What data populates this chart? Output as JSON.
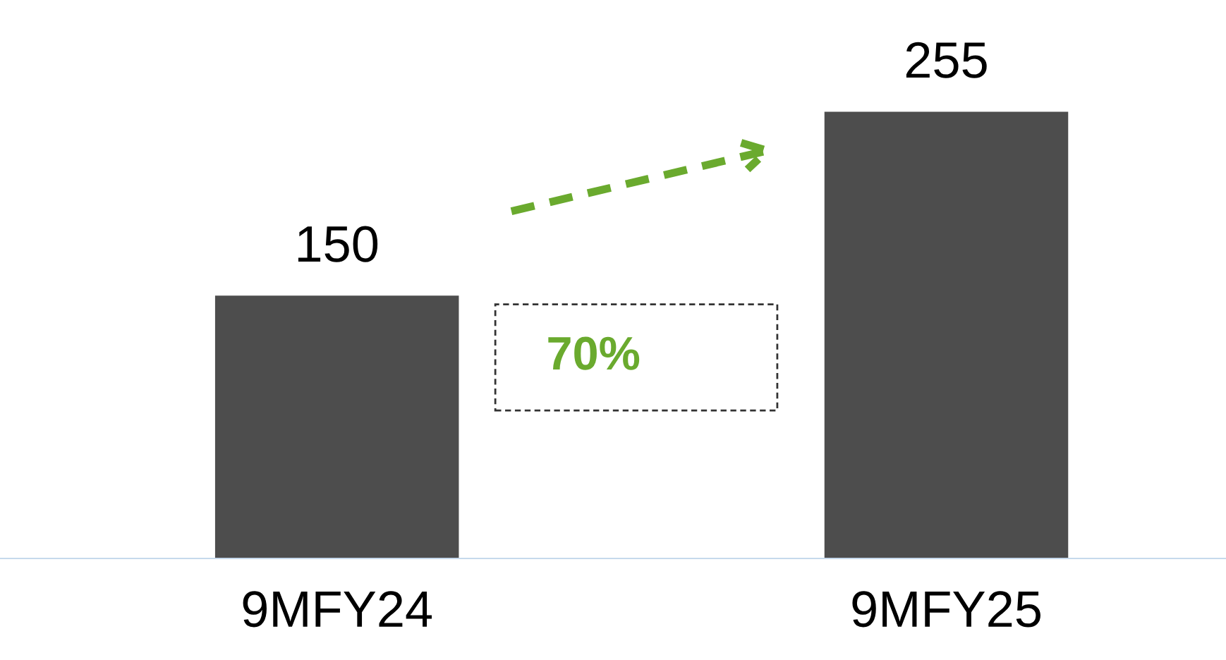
{
  "chart_data": {
    "type": "bar",
    "categories": [
      "9MFY24",
      "9MFY25"
    ],
    "values": [
      150,
      255
    ],
    "color": "#4d4d4d",
    "data_labels": true,
    "grid": false,
    "legend": false,
    "tick_labels": "x",
    "annotations": [
      "70%"
    ]
  }
}
